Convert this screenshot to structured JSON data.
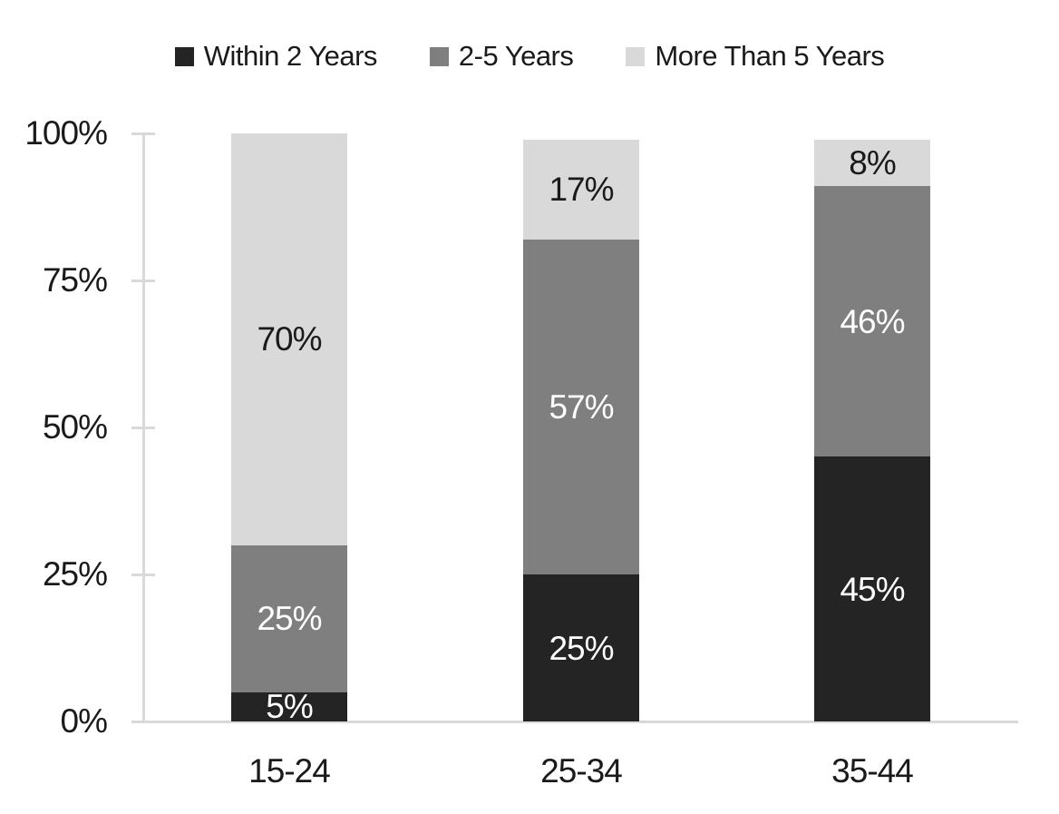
{
  "chart_data": {
    "type": "bar",
    "stacked": true,
    "orientation": "vertical",
    "title": "",
    "xlabel": "",
    "ylabel": "",
    "categories": [
      "15-24",
      "25-34",
      "35-44"
    ],
    "series": [
      {
        "name": "Within 2 Years",
        "color": "#242424",
        "label_color": "#ffffff",
        "values": [
          5,
          25,
          45
        ],
        "labels": [
          "5%",
          "25%",
          "45%"
        ]
      },
      {
        "name": "2-5 Years",
        "color": "#7f7f7f",
        "label_color": "#ffffff",
        "values": [
          25,
          57,
          46
        ],
        "labels": [
          "25%",
          "57%",
          "46%"
        ]
      },
      {
        "name": "More Than 5 Years",
        "color": "#d9d9d9",
        "label_color": "#1a1a1a",
        "values": [
          70,
          17,
          8
        ],
        "labels": [
          "70%",
          "17%",
          "8%"
        ]
      }
    ],
    "y_ticks": [
      "0%",
      "25%",
      "50%",
      "75%",
      "100%"
    ],
    "ylim": [
      0,
      100
    ],
    "value_suffix": "%",
    "legend_position": "top",
    "grid": false,
    "colors": {
      "axis": "#d9d9d9",
      "text": "#1a1a1a",
      "background": "#ffffff"
    }
  }
}
